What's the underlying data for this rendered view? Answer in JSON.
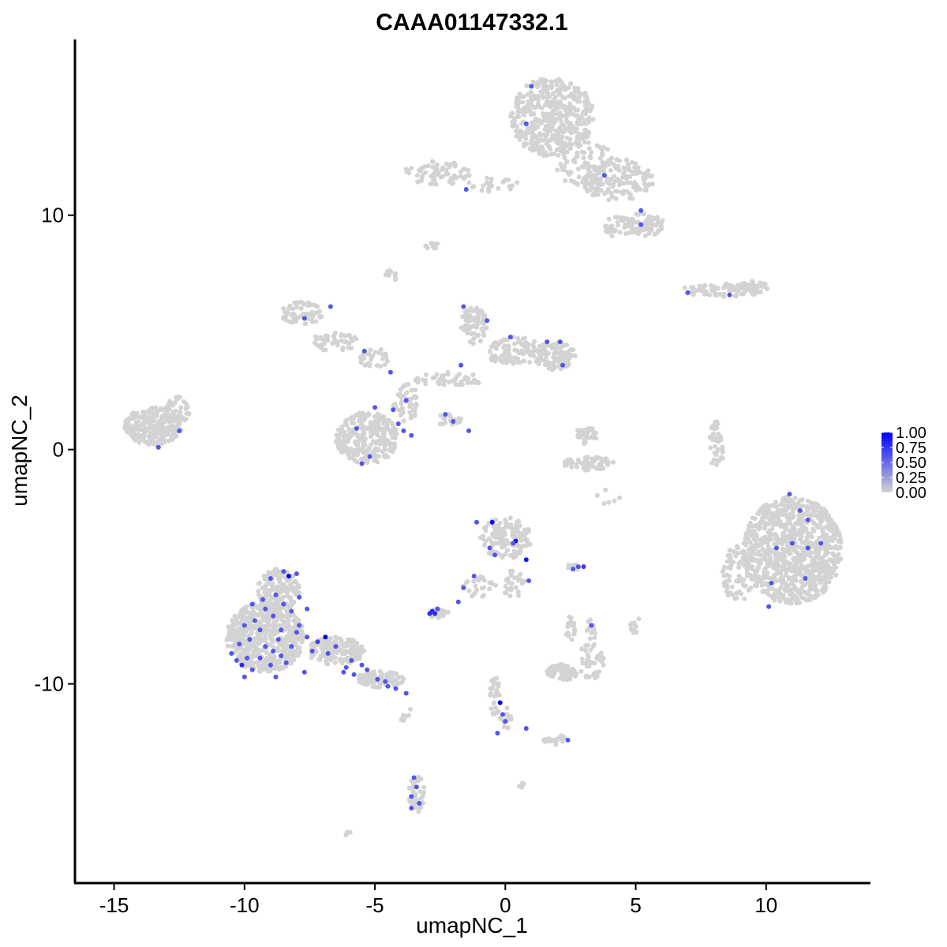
{
  "chart_data": {
    "type": "scatter",
    "title": "CAAA01147332.1",
    "xlabel": "umapNC_1",
    "ylabel": "umapNC_2",
    "xlim": [
      -16.5,
      14
    ],
    "ylim": [
      -18.5,
      17.5
    ],
    "x_ticks": [
      -15,
      -10,
      -5,
      0,
      5,
      10
    ],
    "y_ticks": [
      -10,
      0,
      10
    ],
    "x_tick_labels": [
      "-15",
      "-10",
      "-5",
      "0",
      "5",
      "10"
    ],
    "y_tick_labels": [
      "-10",
      "0",
      "10"
    ],
    "grid": false,
    "legend_position": "right",
    "color_scale": {
      "low_color": "#d3d3d3",
      "high_color": "#0000ff",
      "min": 0,
      "max": 1,
      "tick_values": [
        0,
        0.25,
        0.5,
        0.75,
        1
      ],
      "tick_labels": [
        "0.00",
        "0.25",
        "0.50",
        "0.75",
        "1.00"
      ]
    },
    "clusters": [
      {
        "cx": 1.8,
        "cy": 14.2,
        "rx": 1.6,
        "ry": 1.7,
        "n": 450
      },
      {
        "cx": 4.3,
        "cy": 11.5,
        "rx": 1.4,
        "ry": 0.9,
        "n": 160
      },
      {
        "cx": 5.3,
        "cy": 9.6,
        "rx": 0.8,
        "ry": 0.5,
        "n": 80
      },
      {
        "cx": 3.0,
        "cy": 12.2,
        "rx": 1.3,
        "ry": 1.0,
        "n": 90
      },
      {
        "cx": -2.6,
        "cy": 11.8,
        "rx": 1.3,
        "ry": 0.5,
        "n": 70
      },
      {
        "cx": -0.5,
        "cy": 11.3,
        "rx": 1.0,
        "ry": 0.3,
        "n": 25
      },
      {
        "cx": 4.4,
        "cy": 9.5,
        "rx": 0.6,
        "ry": 0.5,
        "n": 35
      },
      {
        "cx": -2.8,
        "cy": 8.7,
        "rx": 0.3,
        "ry": 0.15,
        "n": 12
      },
      {
        "cx": -4.4,
        "cy": 7.4,
        "rx": 0.25,
        "ry": 0.25,
        "n": 12
      },
      {
        "cx": 8.2,
        "cy": 6.8,
        "rx": 1.4,
        "ry": 0.3,
        "n": 70
      },
      {
        "cx": 9.5,
        "cy": 6.9,
        "rx": 0.6,
        "ry": 0.3,
        "n": 40
      },
      {
        "cx": -13.5,
        "cy": 1.0,
        "rx": 1.1,
        "ry": 0.8,
        "n": 240
      },
      {
        "cx": -12.6,
        "cy": 1.7,
        "rx": 0.5,
        "ry": 0.6,
        "n": 40
      },
      {
        "cx": -7.8,
        "cy": 5.8,
        "rx": 0.8,
        "ry": 0.5,
        "n": 60
      },
      {
        "cx": -6.5,
        "cy": 4.6,
        "rx": 1.0,
        "ry": 0.4,
        "n": 50
      },
      {
        "cx": -5.0,
        "cy": 3.9,
        "rx": 0.6,
        "ry": 0.4,
        "n": 30
      },
      {
        "cx": -5.3,
        "cy": 0.5,
        "rx": 1.2,
        "ry": 1.1,
        "n": 260
      },
      {
        "cx": -3.8,
        "cy": 2.0,
        "rx": 0.5,
        "ry": 0.8,
        "n": 45
      },
      {
        "cx": -2.2,
        "cy": 3.0,
        "rx": 1.4,
        "ry": 0.3,
        "n": 50
      },
      {
        "cx": -1.2,
        "cy": 5.3,
        "rx": 0.5,
        "ry": 0.8,
        "n": 70
      },
      {
        "cx": 0.4,
        "cy": 4.2,
        "rx": 1.2,
        "ry": 0.6,
        "n": 110
      },
      {
        "cx": 1.9,
        "cy": 4.0,
        "rx": 0.8,
        "ry": 0.6,
        "n": 100
      },
      {
        "cx": -2.2,
        "cy": 1.3,
        "rx": 0.6,
        "ry": 0.3,
        "n": 20
      },
      {
        "cx": 3.1,
        "cy": 0.6,
        "rx": 0.4,
        "ry": 0.4,
        "n": 35
      },
      {
        "cx": 3.2,
        "cy": -0.6,
        "rx": 1.0,
        "ry": 0.3,
        "n": 60
      },
      {
        "cx": 8.1,
        "cy": 0.2,
        "rx": 0.3,
        "ry": 1.0,
        "n": 40
      },
      {
        "cx": 11.0,
        "cy": -4.3,
        "rx": 1.9,
        "ry": 2.3,
        "n": 900
      },
      {
        "cx": 8.9,
        "cy": -5.3,
        "rx": 0.6,
        "ry": 1.2,
        "n": 70
      },
      {
        "cx": 0.0,
        "cy": -3.8,
        "rx": 1.0,
        "ry": 0.9,
        "n": 140
      },
      {
        "cx": -1.0,
        "cy": -5.8,
        "rx": 0.7,
        "ry": 0.5,
        "n": 25
      },
      {
        "cx": -2.5,
        "cy": -7.0,
        "rx": 0.4,
        "ry": 0.25,
        "n": 30
      },
      {
        "cx": 0.3,
        "cy": -5.7,
        "rx": 0.5,
        "ry": 0.6,
        "n": 25
      },
      {
        "cx": 2.7,
        "cy": -5.0,
        "rx": 0.4,
        "ry": 0.12,
        "n": 15
      },
      {
        "cx": -9.2,
        "cy": -8.0,
        "rx": 1.5,
        "ry": 1.5,
        "n": 560
      },
      {
        "cx": -8.7,
        "cy": -6.0,
        "rx": 0.8,
        "ry": 0.9,
        "n": 150
      },
      {
        "cx": -6.5,
        "cy": -8.6,
        "rx": 1.1,
        "ry": 0.6,
        "n": 150
      },
      {
        "cx": -4.8,
        "cy": -9.8,
        "rx": 0.9,
        "ry": 0.35,
        "n": 80
      },
      {
        "cx": 2.2,
        "cy": -9.5,
        "rx": 0.6,
        "ry": 0.35,
        "n": 60
      },
      {
        "cx": 3.3,
        "cy": -9.0,
        "rx": 0.5,
        "ry": 0.8,
        "n": 40
      },
      {
        "cx": 2.5,
        "cy": -7.6,
        "rx": 0.2,
        "ry": 0.6,
        "n": 20
      },
      {
        "cx": 5.0,
        "cy": -7.5,
        "rx": 0.2,
        "ry": 0.4,
        "n": 15
      },
      {
        "cx": 3.3,
        "cy": -7.7,
        "rx": 0.2,
        "ry": 0.5,
        "n": 12
      },
      {
        "cx": -0.4,
        "cy": -10.5,
        "rx": 0.2,
        "ry": 0.9,
        "n": 30
      },
      {
        "cx": 0.0,
        "cy": -11.5,
        "rx": 0.25,
        "ry": 0.5,
        "n": 15
      },
      {
        "cx": 2.0,
        "cy": -12.4,
        "rx": 0.6,
        "ry": 0.2,
        "n": 20
      },
      {
        "cx": -3.4,
        "cy": -14.7,
        "rx": 0.3,
        "ry": 0.8,
        "n": 40
      },
      {
        "cx": -6.0,
        "cy": -16.4,
        "rx": 0.15,
        "ry": 0.1,
        "n": 6
      },
      {
        "cx": -3.8,
        "cy": -11.3,
        "rx": 0.3,
        "ry": 0.3,
        "n": 8
      },
      {
        "cx": 0.6,
        "cy": -14.3,
        "rx": 0.1,
        "ry": 0.15,
        "n": 5
      },
      {
        "cx": 4.0,
        "cy": -2.0,
        "rx": 0.5,
        "ry": 0.4,
        "n": 6
      }
    ],
    "expressing_cells": [
      [
        1.0,
        15.5,
        0.6
      ],
      [
        0.8,
        13.9,
        0.6
      ],
      [
        3.8,
        11.7,
        0.6
      ],
      [
        5.2,
        10.2,
        0.6
      ],
      [
        5.2,
        9.6,
        0.6
      ],
      [
        -1.5,
        11.1,
        0.6
      ],
      [
        7.0,
        6.7,
        0.6
      ],
      [
        8.6,
        6.6,
        0.6
      ],
      [
        -13.3,
        0.1,
        0.6
      ],
      [
        -12.5,
        0.8,
        0.6
      ],
      [
        -7.7,
        5.6,
        0.6
      ],
      [
        -6.7,
        6.1,
        0.6
      ],
      [
        -5.4,
        4.2,
        0.6
      ],
      [
        -4.4,
        3.3,
        0.6
      ],
      [
        -5.0,
        1.8,
        0.6
      ],
      [
        -4.3,
        1.7,
        0.6
      ],
      [
        -3.8,
        2.1,
        0.6
      ],
      [
        -5.7,
        0.9,
        0.6
      ],
      [
        -4.1,
        1.1,
        0.6
      ],
      [
        -3.9,
        0.8,
        0.6
      ],
      [
        -3.6,
        0.6,
        0.6
      ],
      [
        -5.2,
        -0.3,
        0.6
      ],
      [
        -5.5,
        -0.6,
        0.6
      ],
      [
        -1.6,
        6.1,
        0.6
      ],
      [
        -0.7,
        5.5,
        0.6
      ],
      [
        0.2,
        4.8,
        0.6
      ],
      [
        1.6,
        4.6,
        0.6
      ],
      [
        2.1,
        4.6,
        0.6
      ],
      [
        2.2,
        3.6,
        0.6
      ],
      [
        -1.7,
        3.6,
        0.6
      ],
      [
        -2.3,
        1.5,
        0.6
      ],
      [
        -2.0,
        1.2,
        0.6
      ],
      [
        -1.4,
        0.8,
        0.6
      ],
      [
        10.9,
        -1.9,
        0.6
      ],
      [
        11.3,
        -2.6,
        0.6
      ],
      [
        11.6,
        -3.0,
        0.6
      ],
      [
        10.4,
        -4.2,
        0.6
      ],
      [
        11.6,
        -4.2,
        0.6
      ],
      [
        12.1,
        -4.0,
        0.6
      ],
      [
        11.0,
        -4.0,
        0.6
      ],
      [
        10.2,
        -5.7,
        0.6
      ],
      [
        11.5,
        -5.5,
        0.6
      ],
      [
        10.1,
        -6.7,
        0.6
      ],
      [
        -1.1,
        -3.1,
        0.6
      ],
      [
        -0.5,
        -3.1,
        1.0
      ],
      [
        0.4,
        -3.9,
        0.9
      ],
      [
        0.8,
        -4.7,
        0.9
      ],
      [
        -0.6,
        -4.2,
        0.6
      ],
      [
        0.3,
        -4.0,
        0.6
      ],
      [
        -0.4,
        -4.5,
        0.6
      ],
      [
        0.9,
        -5.6,
        0.6
      ],
      [
        -1.2,
        -5.4,
        0.6
      ],
      [
        -1.6,
        -5.9,
        0.6
      ],
      [
        -1.8,
        -6.5,
        0.6
      ],
      [
        -2.8,
        -6.9,
        0.8
      ],
      [
        -2.7,
        -7.0,
        0.8
      ],
      [
        -2.9,
        -7.0,
        0.8
      ],
      [
        -2.6,
        -6.8,
        0.6
      ],
      [
        2.6,
        -5.1,
        0.6
      ],
      [
        2.8,
        -5.0,
        0.6
      ],
      [
        3.0,
        -5.0,
        0.7
      ],
      [
        3.3,
        -7.5,
        0.6
      ],
      [
        2.4,
        -12.4,
        0.6
      ],
      [
        -0.2,
        -10.8,
        1.0
      ],
      [
        -0.1,
        -11.3,
        0.6
      ],
      [
        0.0,
        -11.6,
        0.6
      ],
      [
        -0.3,
        -12.1,
        0.6
      ],
      [
        0.8,
        -11.9,
        0.6
      ],
      [
        -3.5,
        -14.0,
        0.6
      ],
      [
        -3.4,
        -14.4,
        0.6
      ],
      [
        -3.6,
        -14.8,
        0.6
      ],
      [
        -3.3,
        -15.1,
        0.6
      ],
      [
        -3.6,
        -15.3,
        0.6
      ],
      [
        -3.8,
        -10.4,
        0.6
      ],
      [
        -4.2,
        -10.2,
        0.6
      ],
      [
        -4.5,
        -10.1,
        0.6
      ],
      [
        -5.3,
        -9.4,
        0.6
      ],
      [
        -5.5,
        -9.2,
        0.6
      ],
      [
        -5.9,
        -9.0,
        0.6
      ],
      [
        -6.1,
        -9.3,
        0.6
      ],
      [
        -6.5,
        -8.4,
        0.6
      ],
      [
        -6.8,
        -8.7,
        0.6
      ],
      [
        -6.9,
        -8.0,
        1.0
      ],
      [
        -7.2,
        -8.2,
        0.7
      ],
      [
        -7.4,
        -8.6,
        0.6
      ],
      [
        -7.6,
        -8.0,
        0.6
      ],
      [
        -7.9,
        -7.5,
        0.6
      ],
      [
        -8.3,
        -5.4,
        1.0
      ],
      [
        -8.5,
        -5.2,
        0.6
      ],
      [
        -8.0,
        -5.3,
        0.6
      ],
      [
        -9.0,
        -5.5,
        0.6
      ],
      [
        -8.8,
        -6.2,
        0.6
      ],
      [
        -8.5,
        -6.6,
        0.6
      ],
      [
        -9.2,
        -6.8,
        0.6
      ],
      [
        -8.9,
        -7.1,
        0.6
      ],
      [
        -9.6,
        -7.3,
        0.6
      ],
      [
        -10.0,
        -7.5,
        0.6
      ],
      [
        -9.4,
        -7.7,
        0.6
      ],
      [
        -8.6,
        -7.7,
        0.6
      ],
      [
        -8.0,
        -7.8,
        0.6
      ],
      [
        -9.8,
        -8.1,
        0.6
      ],
      [
        -10.2,
        -8.3,
        0.6
      ],
      [
        -9.2,
        -8.4,
        0.6
      ],
      [
        -8.7,
        -8.1,
        0.6
      ],
      [
        -8.2,
        -8.4,
        0.6
      ],
      [
        -10.5,
        -8.7,
        0.6
      ],
      [
        -9.9,
        -8.9,
        0.6
      ],
      [
        -9.4,
        -8.9,
        0.6
      ],
      [
        -8.9,
        -8.6,
        0.6
      ],
      [
        -10.1,
        -9.2,
        0.8
      ],
      [
        -10.3,
        -9.0,
        0.6
      ],
      [
        -9.7,
        -9.4,
        0.6
      ],
      [
        -9.0,
        -9.2,
        0.6
      ],
      [
        -8.4,
        -9.1,
        0.6
      ],
      [
        -7.7,
        -9.5,
        0.6
      ],
      [
        -8.8,
        -9.7,
        0.6
      ],
      [
        -10.0,
        -9.7,
        0.6
      ],
      [
        -9.3,
        -6.4,
        0.6
      ],
      [
        -8.2,
        -6.9,
        0.6
      ],
      [
        -7.9,
        -6.3,
        0.6
      ],
      [
        -7.6,
        -6.8,
        0.6
      ],
      [
        -9.7,
        -6.6,
        0.6
      ],
      [
        -8.6,
        -8.8,
        0.6
      ],
      [
        -6.2,
        -9.5,
        0.6
      ],
      [
        -5.8,
        -9.6,
        0.6
      ],
      [
        -4.9,
        -9.8,
        0.6
      ],
      [
        -4.6,
        -9.9,
        0.6
      ]
    ]
  }
}
